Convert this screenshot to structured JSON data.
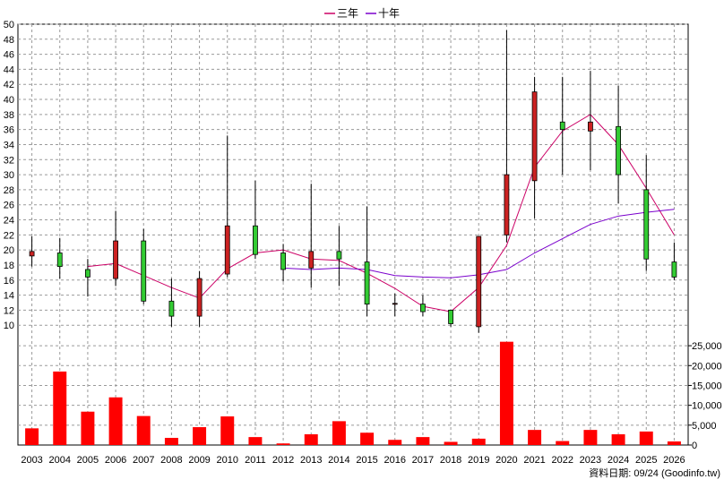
{
  "chart_data": {
    "type": "candlestick",
    "categories": [
      "2003",
      "2004",
      "2005",
      "2006",
      "2007",
      "2008",
      "2009",
      "2010",
      "2011",
      "2012",
      "2013",
      "2014",
      "2015",
      "2016",
      "2017",
      "2018",
      "2019",
      "2020",
      "2021",
      "2022",
      "2023",
      "2024",
      "2025",
      "2026"
    ],
    "legend": [
      {
        "name": "三年",
        "color": "#cc0066"
      },
      {
        "name": "十年",
        "color": "#7a00cc"
      }
    ],
    "legend_position": "top-center",
    "price_axis": {
      "ylim": [
        8,
        50
      ],
      "ticks": [
        10,
        12,
        14,
        16,
        18,
        20,
        22,
        24,
        26,
        28,
        30,
        32,
        34,
        36,
        38,
        40,
        42,
        44,
        46,
        48,
        50
      ]
    },
    "volume_axis": {
      "ylim": [
        0,
        27500
      ],
      "ticks": [
        0,
        5000,
        10000,
        15000,
        20000,
        25000
      ],
      "tick_labels": [
        "0",
        "5,000",
        "10,000",
        "15,000",
        "20,000",
        "25,000"
      ]
    },
    "candles": [
      {
        "open": 19.8,
        "close": 19.2,
        "high": 21.8,
        "low": 17.8
      },
      {
        "open": 17.8,
        "close": 19.6,
        "high": 21.6,
        "low": 16.2
      },
      {
        "open": 16.4,
        "close": 17.4,
        "high": 18.8,
        "low": 13.8
      },
      {
        "open": 21.2,
        "close": 16.2,
        "high": 25.2,
        "low": 15.2
      },
      {
        "open": 13.2,
        "close": 21.2,
        "high": 22.8,
        "low": 12.8
      },
      {
        "open": 11.2,
        "close": 13.2,
        "high": 16.2,
        "low": 9.8
      },
      {
        "open": 16.2,
        "close": 11.2,
        "high": 17.2,
        "low": 9.8
      },
      {
        "open": 23.2,
        "close": 16.8,
        "high": 35.2,
        "low": 16.4
      },
      {
        "open": 19.4,
        "close": 23.2,
        "high": 29.2,
        "low": 18.8
      },
      {
        "open": 17.4,
        "close": 19.6,
        "high": 20.8,
        "low": 15.8
      },
      {
        "open": 19.8,
        "close": 17.6,
        "high": 28.8,
        "low": 15.0
      },
      {
        "open": 18.8,
        "close": 19.8,
        "high": 23.2,
        "low": 15.2
      },
      {
        "open": 12.8,
        "close": 18.4,
        "high": 25.8,
        "low": 11.2
      },
      {
        "open": 12.9,
        "close": 12.8,
        "high": 14.2,
        "low": 11.2
      },
      {
        "open": 11.8,
        "close": 12.8,
        "high": 14.0,
        "low": 11.2
      },
      {
        "open": 10.2,
        "close": 12.0,
        "high": 12.0,
        "low": 9.8
      },
      {
        "open": 21.8,
        "close": 9.8,
        "high": 21.8,
        "low": 9.0
      },
      {
        "open": 30.0,
        "close": 22.0,
        "high": 49.2,
        "low": 21.0
      },
      {
        "open": 41.0,
        "close": 29.2,
        "high": 43.0,
        "low": 24.2
      },
      {
        "open": 36.0,
        "close": 37.0,
        "high": 43.0,
        "low": 30.0
      },
      {
        "open": 37.0,
        "close": 35.8,
        "high": 43.8,
        "low": 30.6
      },
      {
        "open": 30.0,
        "close": 36.4,
        "high": 41.8,
        "low": 26.2
      },
      {
        "open": 18.8,
        "close": 28.0,
        "high": 32.6,
        "low": 17.2
      },
      {
        "open": 16.4,
        "close": 18.4,
        "high": 21.0,
        "low": 16.0
      }
    ],
    "volume": [
      4200,
      18500,
      8400,
      12000,
      7300,
      1800,
      4500,
      7200,
      2000,
      400,
      2700,
      6000,
      3100,
      1300,
      2000,
      800,
      1600,
      26000,
      3800,
      1000,
      3800,
      2700,
      3400,
      900
    ],
    "series": [
      {
        "name": "三年",
        "values": [
          null,
          null,
          17.8,
          18.2,
          16.6,
          15.0,
          13.6,
          17.5,
          19.6,
          20.0,
          18.8,
          18.6,
          16.9,
          14.9,
          12.5,
          11.8,
          15.0,
          20.6,
          31.0,
          35.8,
          38.0,
          34.0,
          28.2,
          22.0
        ]
      },
      {
        "name": "十年",
        "values": [
          null,
          null,
          null,
          null,
          null,
          null,
          null,
          null,
          null,
          null,
          null,
          null,
          null,
          null,
          null,
          null,
          null,
          null,
          null,
          null,
          null,
          null,
          null,
          null
        ]
      }
    ],
    "series_10y_points": [
      {
        "x": "2012",
        "y": 17.6
      },
      {
        "x": "2013",
        "y": 17.4
      },
      {
        "x": "2014",
        "y": 17.6
      },
      {
        "x": "2015",
        "y": 17.4
      },
      {
        "x": "2016",
        "y": 16.6
      },
      {
        "x": "2017",
        "y": 16.4
      },
      {
        "x": "2018",
        "y": 16.3
      },
      {
        "x": "2019",
        "y": 16.7
      },
      {
        "x": "2020",
        "y": 17.4
      },
      {
        "x": "2021",
        "y": 19.6
      },
      {
        "x": "2022",
        "y": 21.5
      },
      {
        "x": "2023",
        "y": 23.4
      },
      {
        "x": "2024",
        "y": 24.5
      },
      {
        "x": "2025",
        "y": 25.0
      },
      {
        "x": "2026",
        "y": 25.4
      }
    ],
    "up_color": "#33cc33",
    "down_color": "#cc2222",
    "volume_color": "#ff0000",
    "grid": true,
    "footer": "資料日期: 09/24  (Goodinfo.tw)"
  }
}
